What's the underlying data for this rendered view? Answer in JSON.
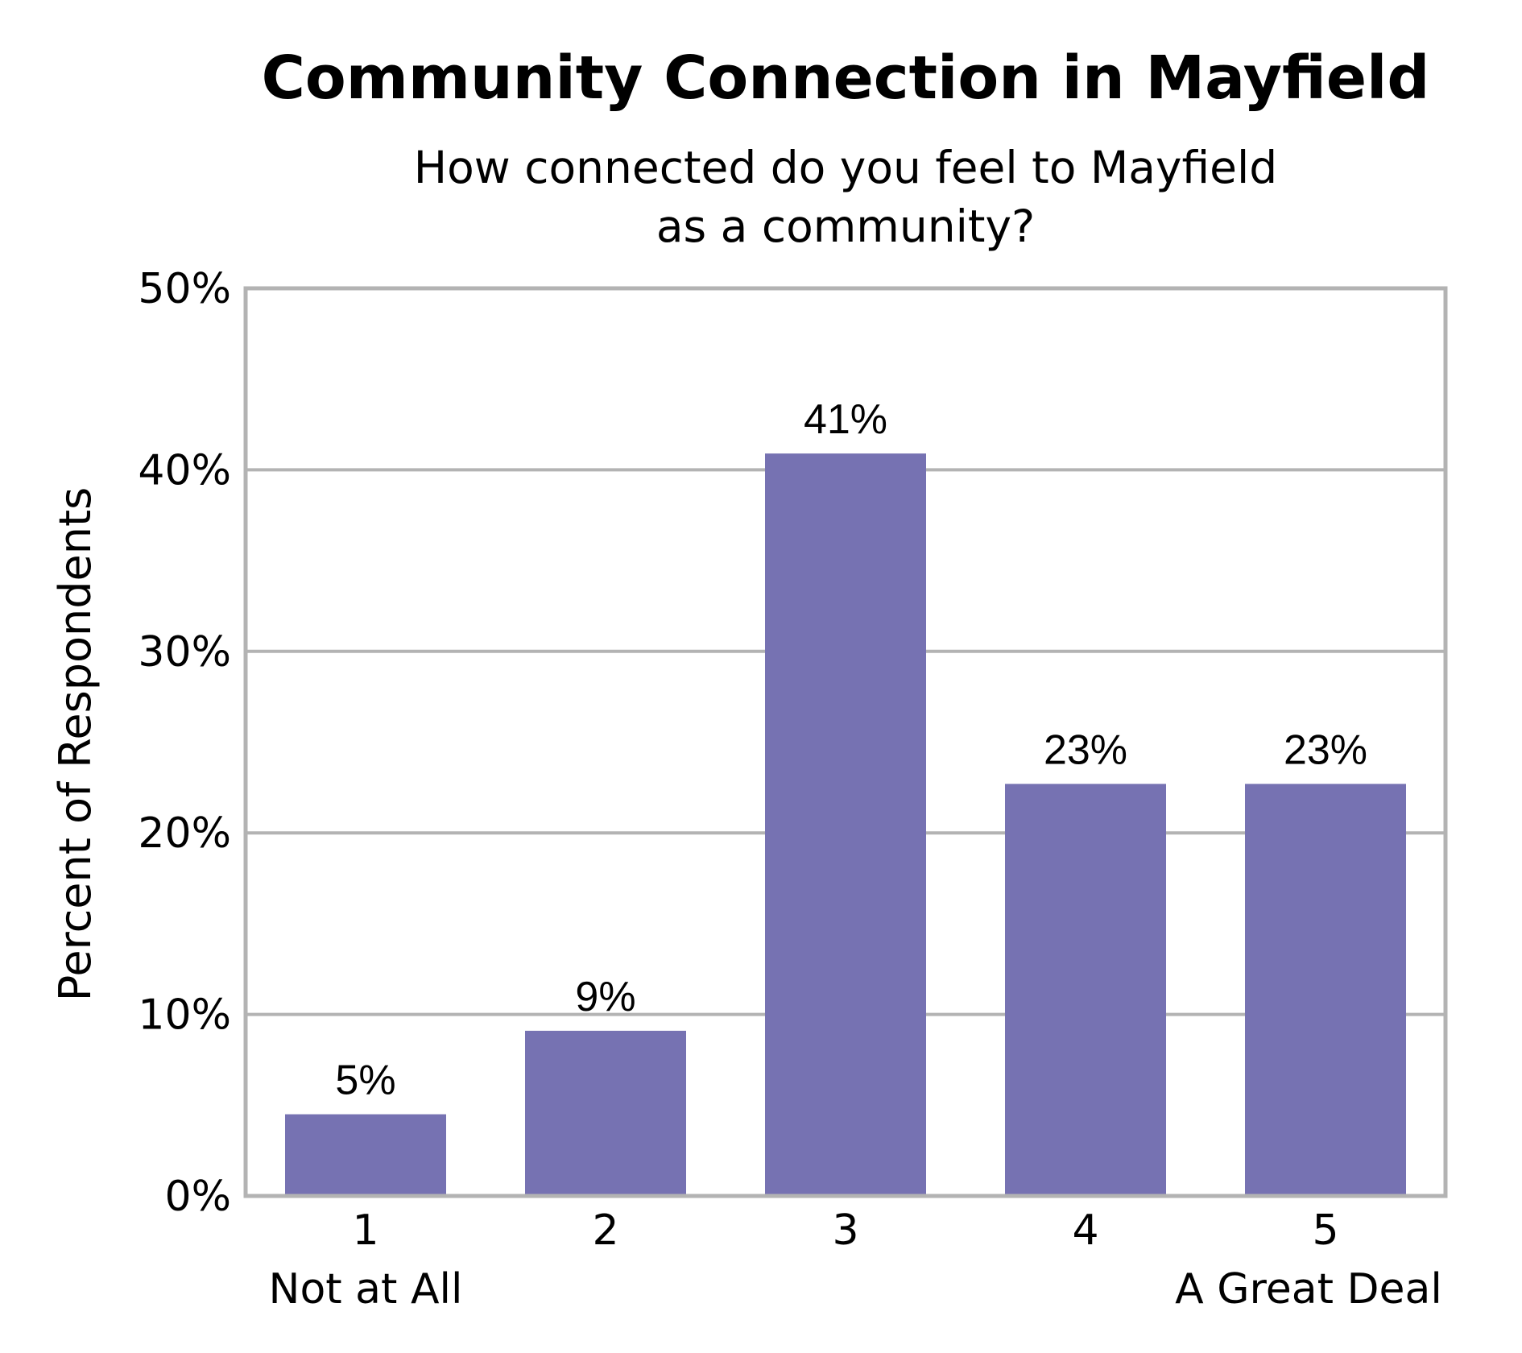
{
  "chart_data": {
    "type": "bar",
    "title": "Community Connection in Mayfield",
    "subtitle_lines": [
      "How connected do you feel to Mayfield",
      "as a community?"
    ],
    "ylabel": "Percent of Respondents",
    "xlabel": "",
    "categories": [
      "1",
      "2",
      "3",
      "4",
      "5"
    ],
    "category_sublabels": [
      "Not at All",
      "",
      "",
      "",
      "A Great Deal"
    ],
    "values": [
      4.5,
      9.1,
      40.9,
      22.7,
      22.7
    ],
    "data_labels": [
      "5%",
      "9%",
      "41%",
      "23%",
      "23%"
    ],
    "ylim": [
      0,
      50
    ],
    "yticks": [
      0,
      10,
      20,
      30,
      40,
      50
    ],
    "ytick_labels": [
      "0%",
      "10%",
      "20%",
      "30%",
      "40%",
      "50%"
    ],
    "grid": true,
    "legend": "none",
    "colors": {
      "bar": "#7672b2",
      "grid": "#b3b3b3",
      "frame": "#b3b3b3",
      "text": "#000000"
    }
  }
}
